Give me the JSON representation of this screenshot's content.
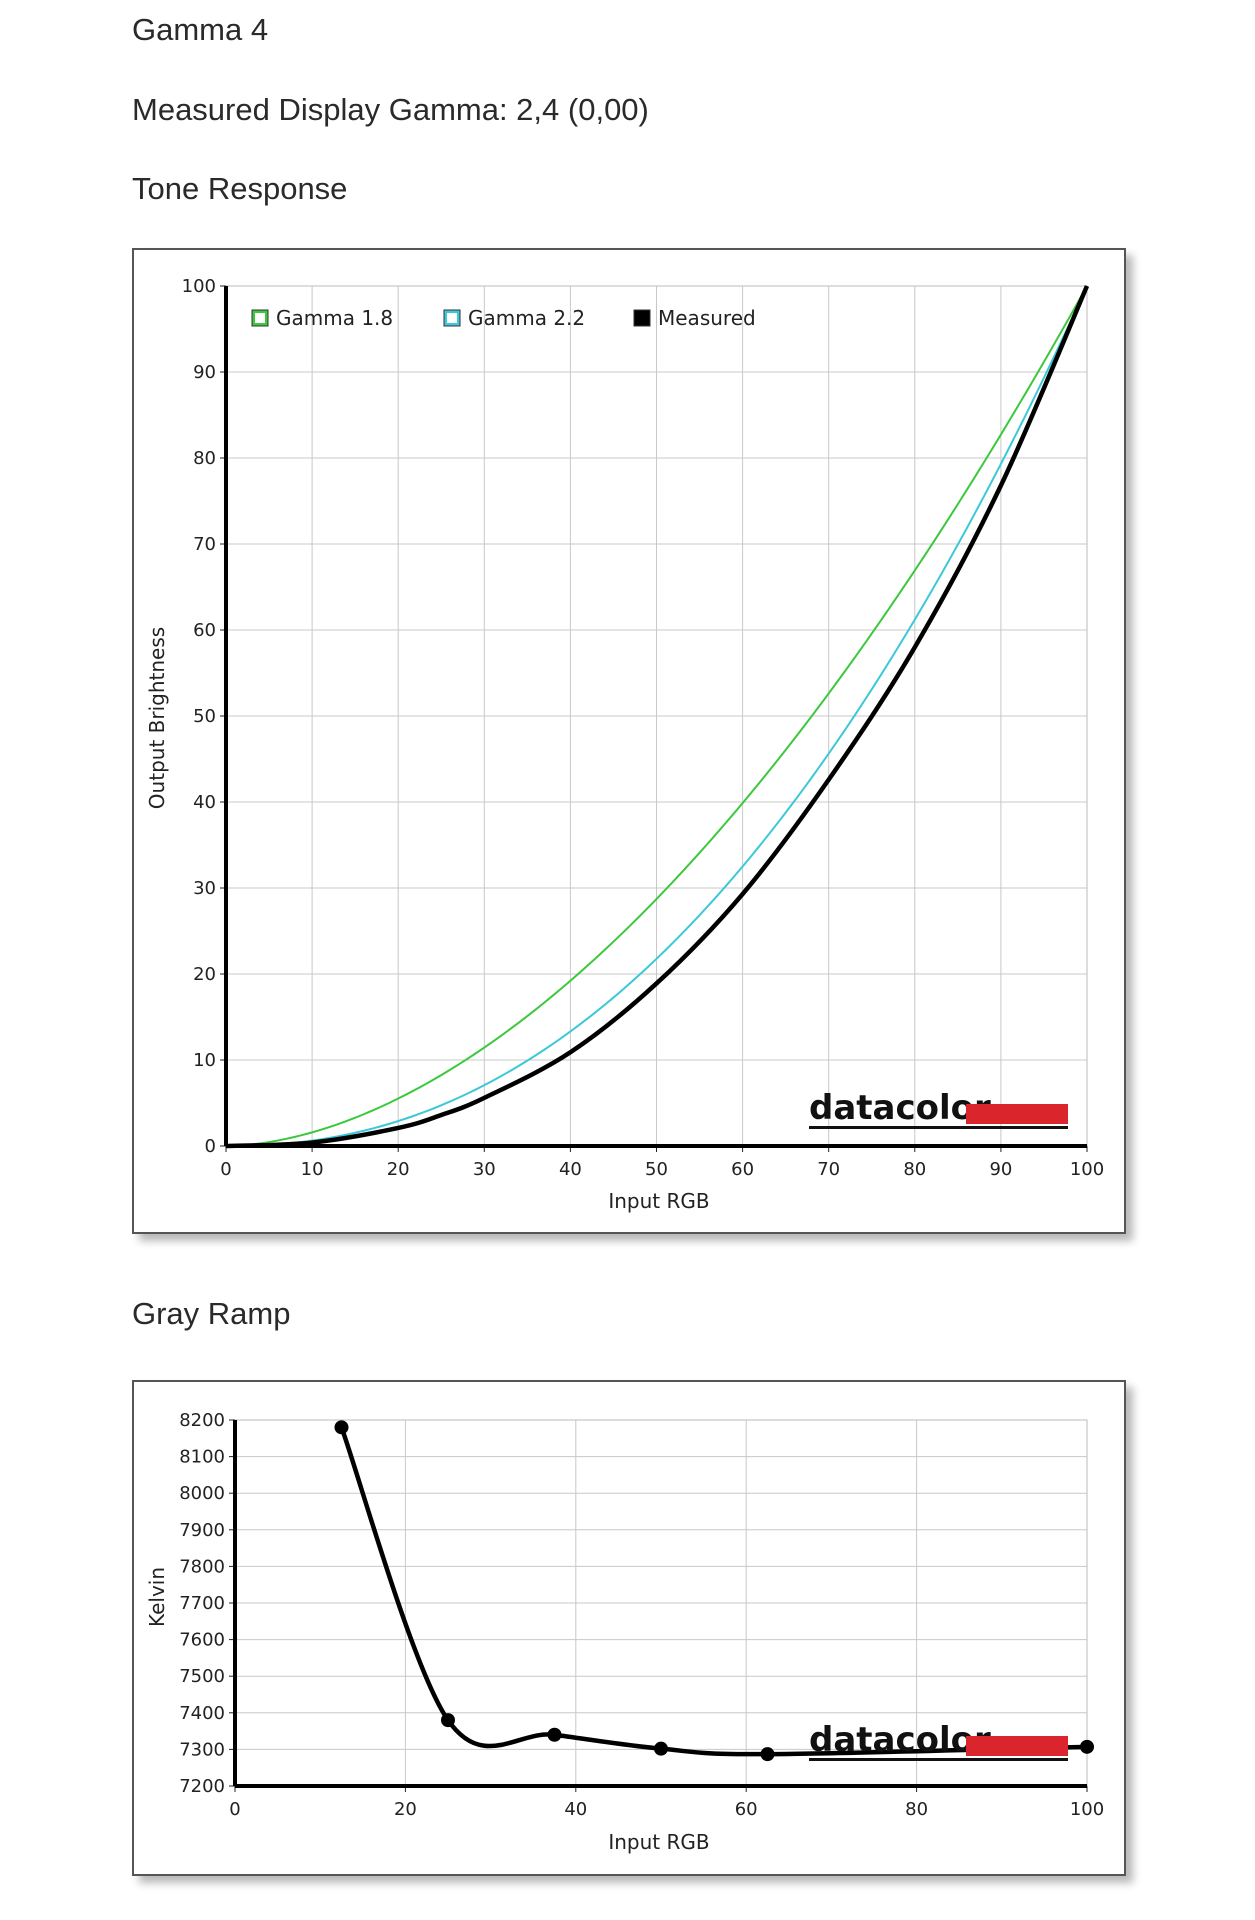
{
  "headings": {
    "title": "Gamma 4",
    "measured": "Measured Display Gamma: 2,4 (0,00)",
    "tone": "Tone Response",
    "gray": "Gray Ramp"
  },
  "logo": {
    "text": "datacolor",
    "accent": "#d9252b"
  },
  "chart_data": [
    {
      "type": "line",
      "title": "Tone Response",
      "xlabel": "Input RGB",
      "ylabel": "Output Brightness",
      "xlim": [
        0,
        100
      ],
      "ylim": [
        0,
        100
      ],
      "xticks": [
        "0",
        "10",
        "20",
        "30",
        "40",
        "50",
        "60",
        "70",
        "80",
        "90",
        "100"
      ],
      "yticks": [
        "0",
        "10",
        "20",
        "30",
        "40",
        "50",
        "60",
        "70",
        "80",
        "90",
        "100"
      ],
      "grid": true,
      "legend_position": "top-left",
      "series": [
        {
          "name": "Gamma 1.8",
          "color": "#3cc83c",
          "gamma": 1.8,
          "x": [
            0,
            10,
            20,
            30,
            40,
            50,
            60,
            70,
            80,
            90,
            100
          ],
          "y": [
            0,
            1.6,
            5.5,
            11.5,
            19.2,
            28.7,
            39.9,
            52.6,
            66.9,
            82.7,
            100
          ]
        },
        {
          "name": "Gamma 2.2",
          "color": "#3cc8d8",
          "gamma": 2.2,
          "x": [
            0,
            10,
            20,
            30,
            40,
            50,
            60,
            70,
            80,
            90,
            100
          ],
          "y": [
            0,
            0.6,
            2.9,
            7.1,
            13.3,
            21.8,
            32.5,
            45.6,
            61.2,
            79.3,
            100
          ]
        },
        {
          "name": "Measured",
          "color": "#000000",
          "x": [
            0,
            10,
            20,
            25,
            30,
            40,
            50,
            60,
            70,
            80,
            90,
            100
          ],
          "y": [
            0,
            0.4,
            2.1,
            3.6,
            5.6,
            10.9,
            18.9,
            29.3,
            42.6,
            58.0,
            76.8,
            100
          ]
        }
      ]
    },
    {
      "type": "line",
      "title": "Gray Ramp",
      "xlabel": "Input RGB",
      "ylabel": "Kelvin",
      "xlim": [
        0,
        100
      ],
      "ylim": [
        7200,
        8200
      ],
      "xticks": [
        "0",
        "20",
        "40",
        "60",
        "80",
        "100"
      ],
      "yticks": [
        "7200",
        "7300",
        "7400",
        "7500",
        "7600",
        "7700",
        "7800",
        "7900",
        "8000",
        "8100",
        "8200"
      ],
      "grid": true,
      "series": [
        {
          "color": "#000000",
          "x": [
            12.5,
            25,
            37.5,
            50,
            62.5,
            100
          ],
          "y": [
            8180,
            7380,
            7340,
            7302,
            7287,
            7307
          ]
        }
      ]
    }
  ]
}
